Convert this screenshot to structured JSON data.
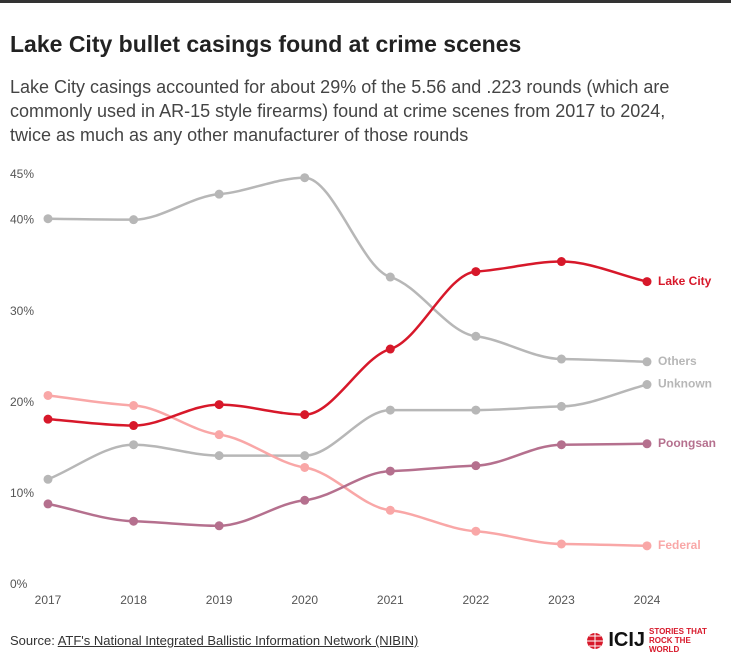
{
  "chart_data": {
    "type": "line",
    "title": "Lake City bullet casings found at crime scenes",
    "subtitle": "Lake City casings accounted for about 29% of the 5.56 and .223 rounds (which are commonly used in AR-15 style firearms) found at crime scenes from 2017 to 2024, twice as much as any other manufacturer of those rounds",
    "source_label": "Source:",
    "source": "ATF's National Integrated Ballistic Information Network (NIBIN)",
    "logo": "ICIJ",
    "tagline": "STORIES THAT ROCK THE WORLD",
    "x": [
      2017,
      2018,
      2019,
      2020,
      2021,
      2022,
      2023,
      2024
    ],
    "xlim": [
      2017,
      2024
    ],
    "xticks": [
      2017,
      2018,
      2019,
      2020,
      2021,
      2022,
      2023,
      2024
    ],
    "ylim": [
      0,
      45
    ],
    "yticks": [
      {
        "value": 0,
        "label": "0%"
      },
      {
        "value": 10,
        "label": "10%"
      },
      {
        "value": 20,
        "label": "20%"
      },
      {
        "value": 30,
        "label": "30%"
      },
      {
        "value": 40,
        "label": "40%"
      },
      {
        "value": 45,
        "label": "45%"
      }
    ],
    "grid": false,
    "series": [
      {
        "name": "Others",
        "color": "#b7b7b7",
        "values": [
          40.2,
          40.1,
          42.9,
          44.7,
          33.8,
          27.3,
          24.8,
          24.5
        ]
      },
      {
        "name": "Unknown",
        "color": "#b7b7b7",
        "values": [
          11.6,
          15.4,
          14.2,
          14.2,
          19.2,
          19.2,
          19.6,
          22.0
        ]
      },
      {
        "name": "Federal",
        "color": "#f9a7a7",
        "values": [
          20.8,
          19.7,
          16.5,
          12.9,
          8.2,
          5.9,
          4.5,
          4.3
        ]
      },
      {
        "name": "Poongsan",
        "color": "#b5708e",
        "values": [
          8.9,
          7.0,
          6.5,
          9.3,
          12.5,
          13.1,
          15.4,
          15.5
        ]
      },
      {
        "name": "Lake City",
        "color": "#d7182a",
        "values": [
          18.2,
          17.5,
          19.8,
          18.7,
          25.9,
          34.4,
          35.5,
          33.3
        ]
      }
    ]
  }
}
